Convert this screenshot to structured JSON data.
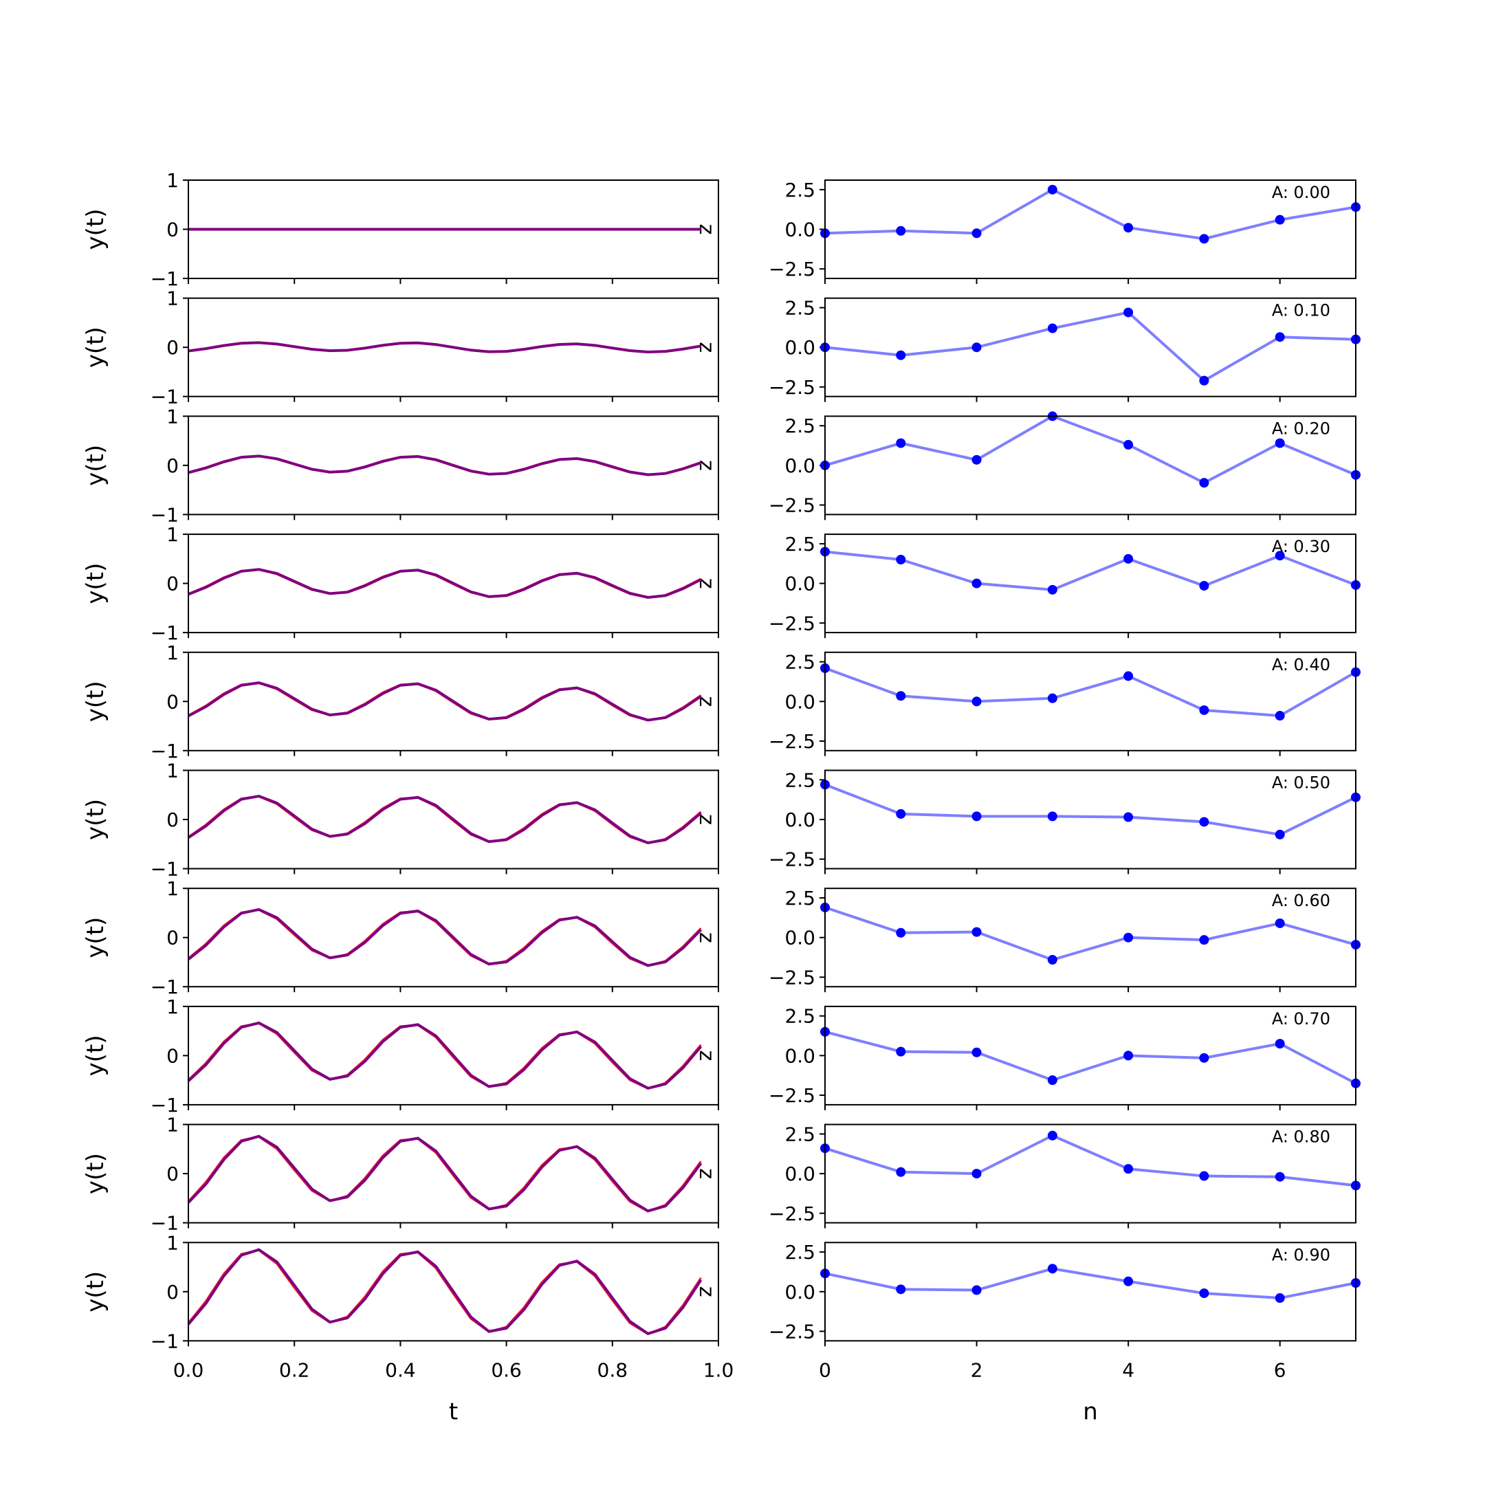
{
  "chart_data": [
    {
      "type": "line",
      "panel": "left",
      "xlabel": "t",
      "ylabel": "y(t)",
      "xlim": [
        0.0,
        1.0
      ],
      "ylim": [
        -1,
        1
      ],
      "xticks": [
        "0.0",
        "0.2",
        "0.4",
        "0.6",
        "0.8",
        "1.0"
      ],
      "yticks": [
        "-1",
        "0",
        "1"
      ],
      "side_label": "z",
      "colors": {
        "series_a": "#0000ff",
        "series_b": "#ff0000",
        "overlap": "#800080"
      },
      "t": [
        0.0,
        0.033,
        0.067,
        0.1,
        0.133,
        0.167,
        0.2,
        0.233,
        0.267,
        0.3,
        0.333,
        0.367,
        0.4,
        0.433,
        0.467,
        0.5,
        0.533,
        0.567,
        0.6,
        0.633,
        0.667,
        0.7,
        0.733,
        0.767,
        0.8,
        0.833,
        0.867,
        0.9,
        0.933,
        0.967
      ],
      "rows": [
        {
          "A": 0.0,
          "amplitude": 0.0
        },
        {
          "A": 0.1,
          "amplitude": 0.1
        },
        {
          "A": 0.2,
          "amplitude": 0.2
        },
        {
          "A": 0.3,
          "amplitude": 0.3
        },
        {
          "A": 0.4,
          "amplitude": 0.4
        },
        {
          "A": 0.5,
          "amplitude": 0.5
        },
        {
          "A": 0.6,
          "amplitude": 0.6
        },
        {
          "A": 0.7,
          "amplitude": 0.7
        },
        {
          "A": 0.8,
          "amplitude": 0.8
        },
        {
          "A": 0.9,
          "amplitude": 0.9
        }
      ]
    },
    {
      "type": "line",
      "panel": "right",
      "xlabel": "n",
      "xlim": [
        0,
        7
      ],
      "ylim": [
        -3.1,
        3.1
      ],
      "xticks": [
        0,
        2,
        4,
        6
      ],
      "yticks": [
        "2.5",
        "0.0",
        "-2.5"
      ],
      "color": "#0000ff",
      "line_alpha": 0.5,
      "n": [
        0,
        1,
        2,
        3,
        4,
        5,
        6,
        7
      ],
      "series": [
        {
          "annotation": "A: 0.00",
          "values": [
            -0.25,
            -0.1,
            -0.25,
            2.5,
            0.1,
            -0.6,
            0.6,
            1.4
          ]
        },
        {
          "annotation": "A: 0.10",
          "values": [
            0.0,
            -0.5,
            0.0,
            1.2,
            2.2,
            -2.1,
            0.65,
            0.5
          ]
        },
        {
          "annotation": "A: 0.20",
          "values": [
            0.0,
            1.4,
            0.35,
            3.1,
            1.3,
            -1.1,
            1.4,
            -0.6
          ]
        },
        {
          "annotation": "A: 0.30",
          "values": [
            2.0,
            1.5,
            0.0,
            -0.4,
            1.55,
            -0.15,
            1.75,
            -0.1
          ]
        },
        {
          "annotation": "A: 0.40",
          "values": [
            2.1,
            0.35,
            0.0,
            0.2,
            1.6,
            -0.55,
            -0.9,
            1.85
          ]
        },
        {
          "annotation": "A: 0.50",
          "values": [
            2.2,
            0.35,
            0.2,
            0.2,
            0.15,
            -0.15,
            -0.95,
            1.4
          ]
        },
        {
          "annotation": "A: 0.60",
          "values": [
            1.9,
            0.3,
            0.35,
            -1.4,
            0.0,
            -0.15,
            0.9,
            -0.45
          ]
        },
        {
          "annotation": "A: 0.70",
          "values": [
            1.5,
            0.25,
            0.2,
            -1.55,
            0.0,
            -0.15,
            0.75,
            -1.75
          ]
        },
        {
          "annotation": "A: 0.80",
          "values": [
            1.6,
            0.1,
            0.0,
            2.4,
            0.3,
            -0.15,
            -0.2,
            -0.75
          ]
        },
        {
          "annotation": "A: 0.90",
          "values": [
            1.15,
            0.15,
            0.1,
            1.45,
            0.65,
            -0.1,
            -0.4,
            0.55
          ]
        }
      ]
    }
  ]
}
